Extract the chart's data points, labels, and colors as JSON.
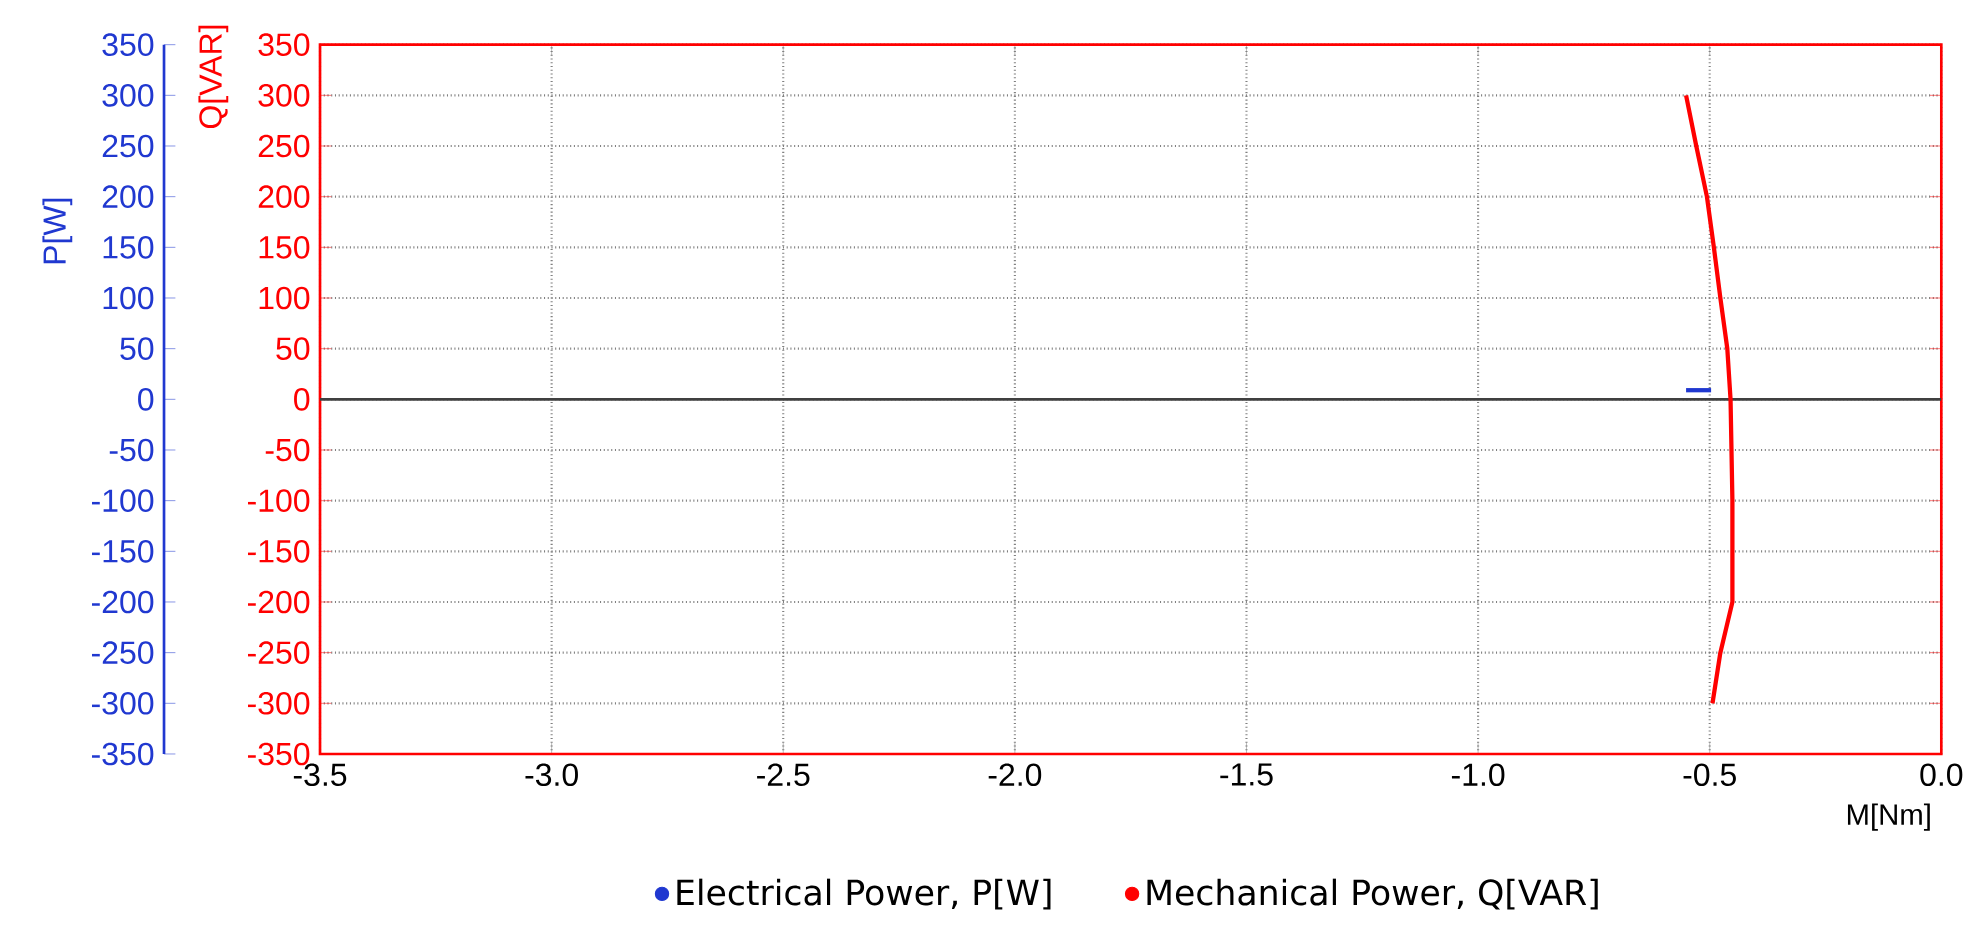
{
  "chart_data": {
    "type": "line",
    "xlabel": "M[Nm]",
    "ylabel": "Q[VAR]",
    "y2label": "P[W]",
    "xlim": [
      -3.5,
      0
    ],
    "xticks": [
      -3.5,
      {
        "value": -3,
        "label": "-3.0"
      },
      -2.5,
      {
        "value": -2,
        "label": "-2.0"
      },
      -1.5,
      {
        "value": -1,
        "label": "-1.0"
      },
      -0.5,
      {
        "value": 0,
        "label": "0.0"
      }
    ],
    "ylim": [
      -350,
      350
    ],
    "yticks": [
      -350,
      -300,
      -250,
      -200,
      -150,
      -100,
      -50,
      0,
      50,
      100,
      150,
      200,
      250,
      300,
      350
    ],
    "y2lim": [
      -350,
      350
    ],
    "y2ticks": [
      -350,
      -300,
      -250,
      -200,
      -150,
      -100,
      -50,
      0,
      50,
      100,
      150,
      200,
      250,
      300,
      350
    ],
    "grid": true,
    "legend": "bottom",
    "marker": "none",
    "line_style": "solid",
    "ref_lines": [
      {
        "axis": "y",
        "value": 0,
        "color": "#404040"
      }
    ],
    "series": [
      {
        "name": "Electrical Power, P[W]",
        "color": "#2038d0",
        "axis": "y2",
        "x": [
          -0.551,
          -0.497
        ],
        "values": [
          9,
          9
        ]
      },
      {
        "name": "Mechanical Power, Q[VAR]",
        "color": "#ff0000",
        "axis": "y",
        "x": [
          -0.551,
          -0.529,
          -0.506,
          -0.491,
          -0.477,
          -0.462,
          -0.455,
          -0.451,
          -0.451,
          -0.477,
          -0.494
        ],
        "values": [
          300,
          250,
          200,
          150,
          100,
          50,
          0,
          -100,
          -200,
          -250,
          -300
        ]
      }
    ]
  }
}
